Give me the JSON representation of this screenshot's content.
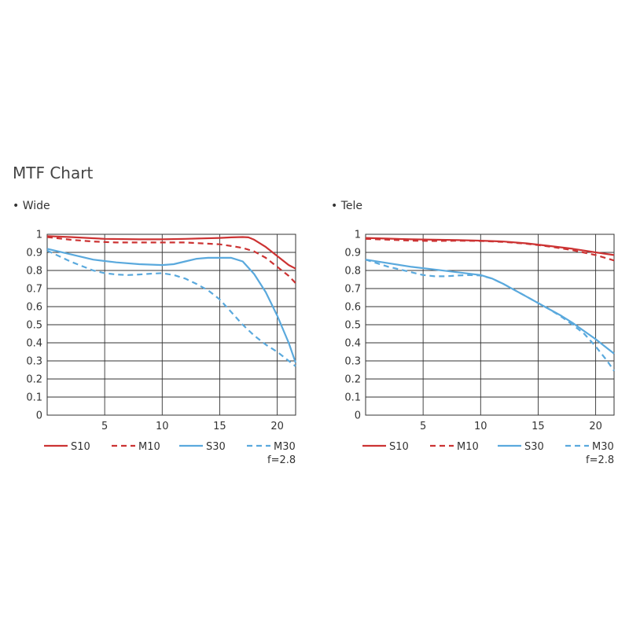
{
  "title": "MTF Chart",
  "colors": {
    "sagittal": "#cc3333",
    "meridional_red": "#cc3333",
    "blue": "#5aa9dd"
  },
  "chart_data": [
    {
      "type": "line",
      "panel_label": "• Wide",
      "aperture": "f=2.8",
      "xlim": [
        0,
        21.6
      ],
      "ylim": [
        0,
        1
      ],
      "x_ticks": [
        5,
        10,
        15,
        20
      ],
      "y_ticks": [
        0,
        0.1,
        0.2,
        0.3,
        0.4,
        0.5,
        0.6,
        0.7,
        0.8,
        0.9,
        1
      ],
      "y_tick_labels": [
        "0",
        "0.1",
        "0.2",
        "0.3",
        "0.4",
        "0.5",
        "0.6",
        "0.7",
        "0.8",
        "0.9",
        "1"
      ],
      "grid": true,
      "legend": [
        "S10",
        "M10",
        "S30",
        "M30"
      ],
      "series": [
        {
          "name": "S10",
          "color": "#cc3333",
          "dash": false,
          "x": [
            0,
            2,
            5,
            8,
            10,
            12,
            15,
            16,
            17,
            17.5,
            18,
            19,
            20,
            21,
            21.6
          ],
          "y": [
            0.99,
            0.985,
            0.975,
            0.972,
            0.972,
            0.975,
            0.98,
            0.983,
            0.985,
            0.983,
            0.97,
            0.93,
            0.88,
            0.83,
            0.81
          ]
        },
        {
          "name": "M10",
          "color": "#cc3333",
          "dash": true,
          "x": [
            0,
            2,
            4,
            6,
            8,
            10,
            12,
            15,
            16,
            17,
            18,
            19,
            20,
            21,
            21.6
          ],
          "y": [
            0.985,
            0.97,
            0.96,
            0.955,
            0.955,
            0.955,
            0.955,
            0.945,
            0.935,
            0.925,
            0.905,
            0.87,
            0.82,
            0.77,
            0.73
          ]
        },
        {
          "name": "S30",
          "color": "#5aa9dd",
          "dash": false,
          "x": [
            0,
            2,
            4,
            6,
            8,
            10,
            11,
            12,
            13,
            14,
            15,
            16,
            17,
            18,
            19,
            20,
            21,
            21.6
          ],
          "y": [
            0.92,
            0.89,
            0.86,
            0.845,
            0.835,
            0.83,
            0.835,
            0.85,
            0.865,
            0.87,
            0.87,
            0.87,
            0.85,
            0.78,
            0.68,
            0.55,
            0.4,
            0.29
          ]
        },
        {
          "name": "M30",
          "color": "#5aa9dd",
          "dash": true,
          "x": [
            0,
            2,
            4,
            5,
            6,
            7,
            8,
            9,
            10,
            11,
            12,
            13,
            14,
            15,
            16,
            17,
            18,
            19,
            20,
            21,
            21.6
          ],
          "y": [
            0.91,
            0.85,
            0.8,
            0.785,
            0.778,
            0.775,
            0.778,
            0.782,
            0.785,
            0.775,
            0.755,
            0.725,
            0.69,
            0.64,
            0.57,
            0.5,
            0.44,
            0.39,
            0.35,
            0.3,
            0.27
          ]
        }
      ]
    },
    {
      "type": "line",
      "panel_label": "• Tele",
      "aperture": "f=2.8",
      "xlim": [
        0,
        21.6
      ],
      "ylim": [
        0,
        1
      ],
      "x_ticks": [
        5,
        10,
        15,
        20
      ],
      "y_ticks": [
        0,
        0.1,
        0.2,
        0.3,
        0.4,
        0.5,
        0.6,
        0.7,
        0.8,
        0.9,
        1
      ],
      "y_tick_labels": [
        "0",
        "0.1",
        "0.2",
        "0.3",
        "0.4",
        "0.5",
        "0.6",
        "0.7",
        "0.8",
        "0.9",
        "1"
      ],
      "grid": true,
      "legend": [
        "S10",
        "M10",
        "S30",
        "M30"
      ],
      "series": [
        {
          "name": "S10",
          "color": "#cc3333",
          "dash": false,
          "x": [
            0,
            2,
            4,
            6,
            8,
            10,
            12,
            14,
            16,
            18,
            20,
            21.6
          ],
          "y": [
            0.98,
            0.976,
            0.972,
            0.97,
            0.968,
            0.965,
            0.96,
            0.95,
            0.935,
            0.92,
            0.9,
            0.885
          ]
        },
        {
          "name": "M10",
          "color": "#cc3333",
          "dash": true,
          "x": [
            0,
            2,
            4,
            6,
            8,
            10,
            12,
            14,
            16,
            18,
            20,
            21.6
          ],
          "y": [
            0.975,
            0.97,
            0.965,
            0.963,
            0.965,
            0.963,
            0.958,
            0.948,
            0.932,
            0.912,
            0.885,
            0.855
          ]
        },
        {
          "name": "S30",
          "color": "#5aa9dd",
          "dash": false,
          "x": [
            0,
            2,
            4,
            6,
            8,
            10,
            11,
            12,
            13,
            14,
            15,
            16,
            17,
            18,
            19,
            20,
            21,
            21.6
          ],
          "y": [
            0.86,
            0.84,
            0.82,
            0.805,
            0.79,
            0.775,
            0.755,
            0.725,
            0.69,
            0.655,
            0.62,
            0.585,
            0.55,
            0.51,
            0.465,
            0.42,
            0.37,
            0.34
          ]
        },
        {
          "name": "M30",
          "color": "#5aa9dd",
          "dash": true,
          "x": [
            0,
            2,
            4,
            5,
            6,
            7,
            8,
            9,
            10,
            11,
            12,
            13,
            14,
            15,
            16,
            17,
            18,
            19,
            20,
            21,
            21.6
          ],
          "y": [
            0.86,
            0.82,
            0.79,
            0.775,
            0.768,
            0.768,
            0.772,
            0.775,
            0.772,
            0.755,
            0.725,
            0.69,
            0.655,
            0.62,
            0.585,
            0.545,
            0.5,
            0.45,
            0.38,
            0.3,
            0.245
          ]
        }
      ]
    }
  ]
}
